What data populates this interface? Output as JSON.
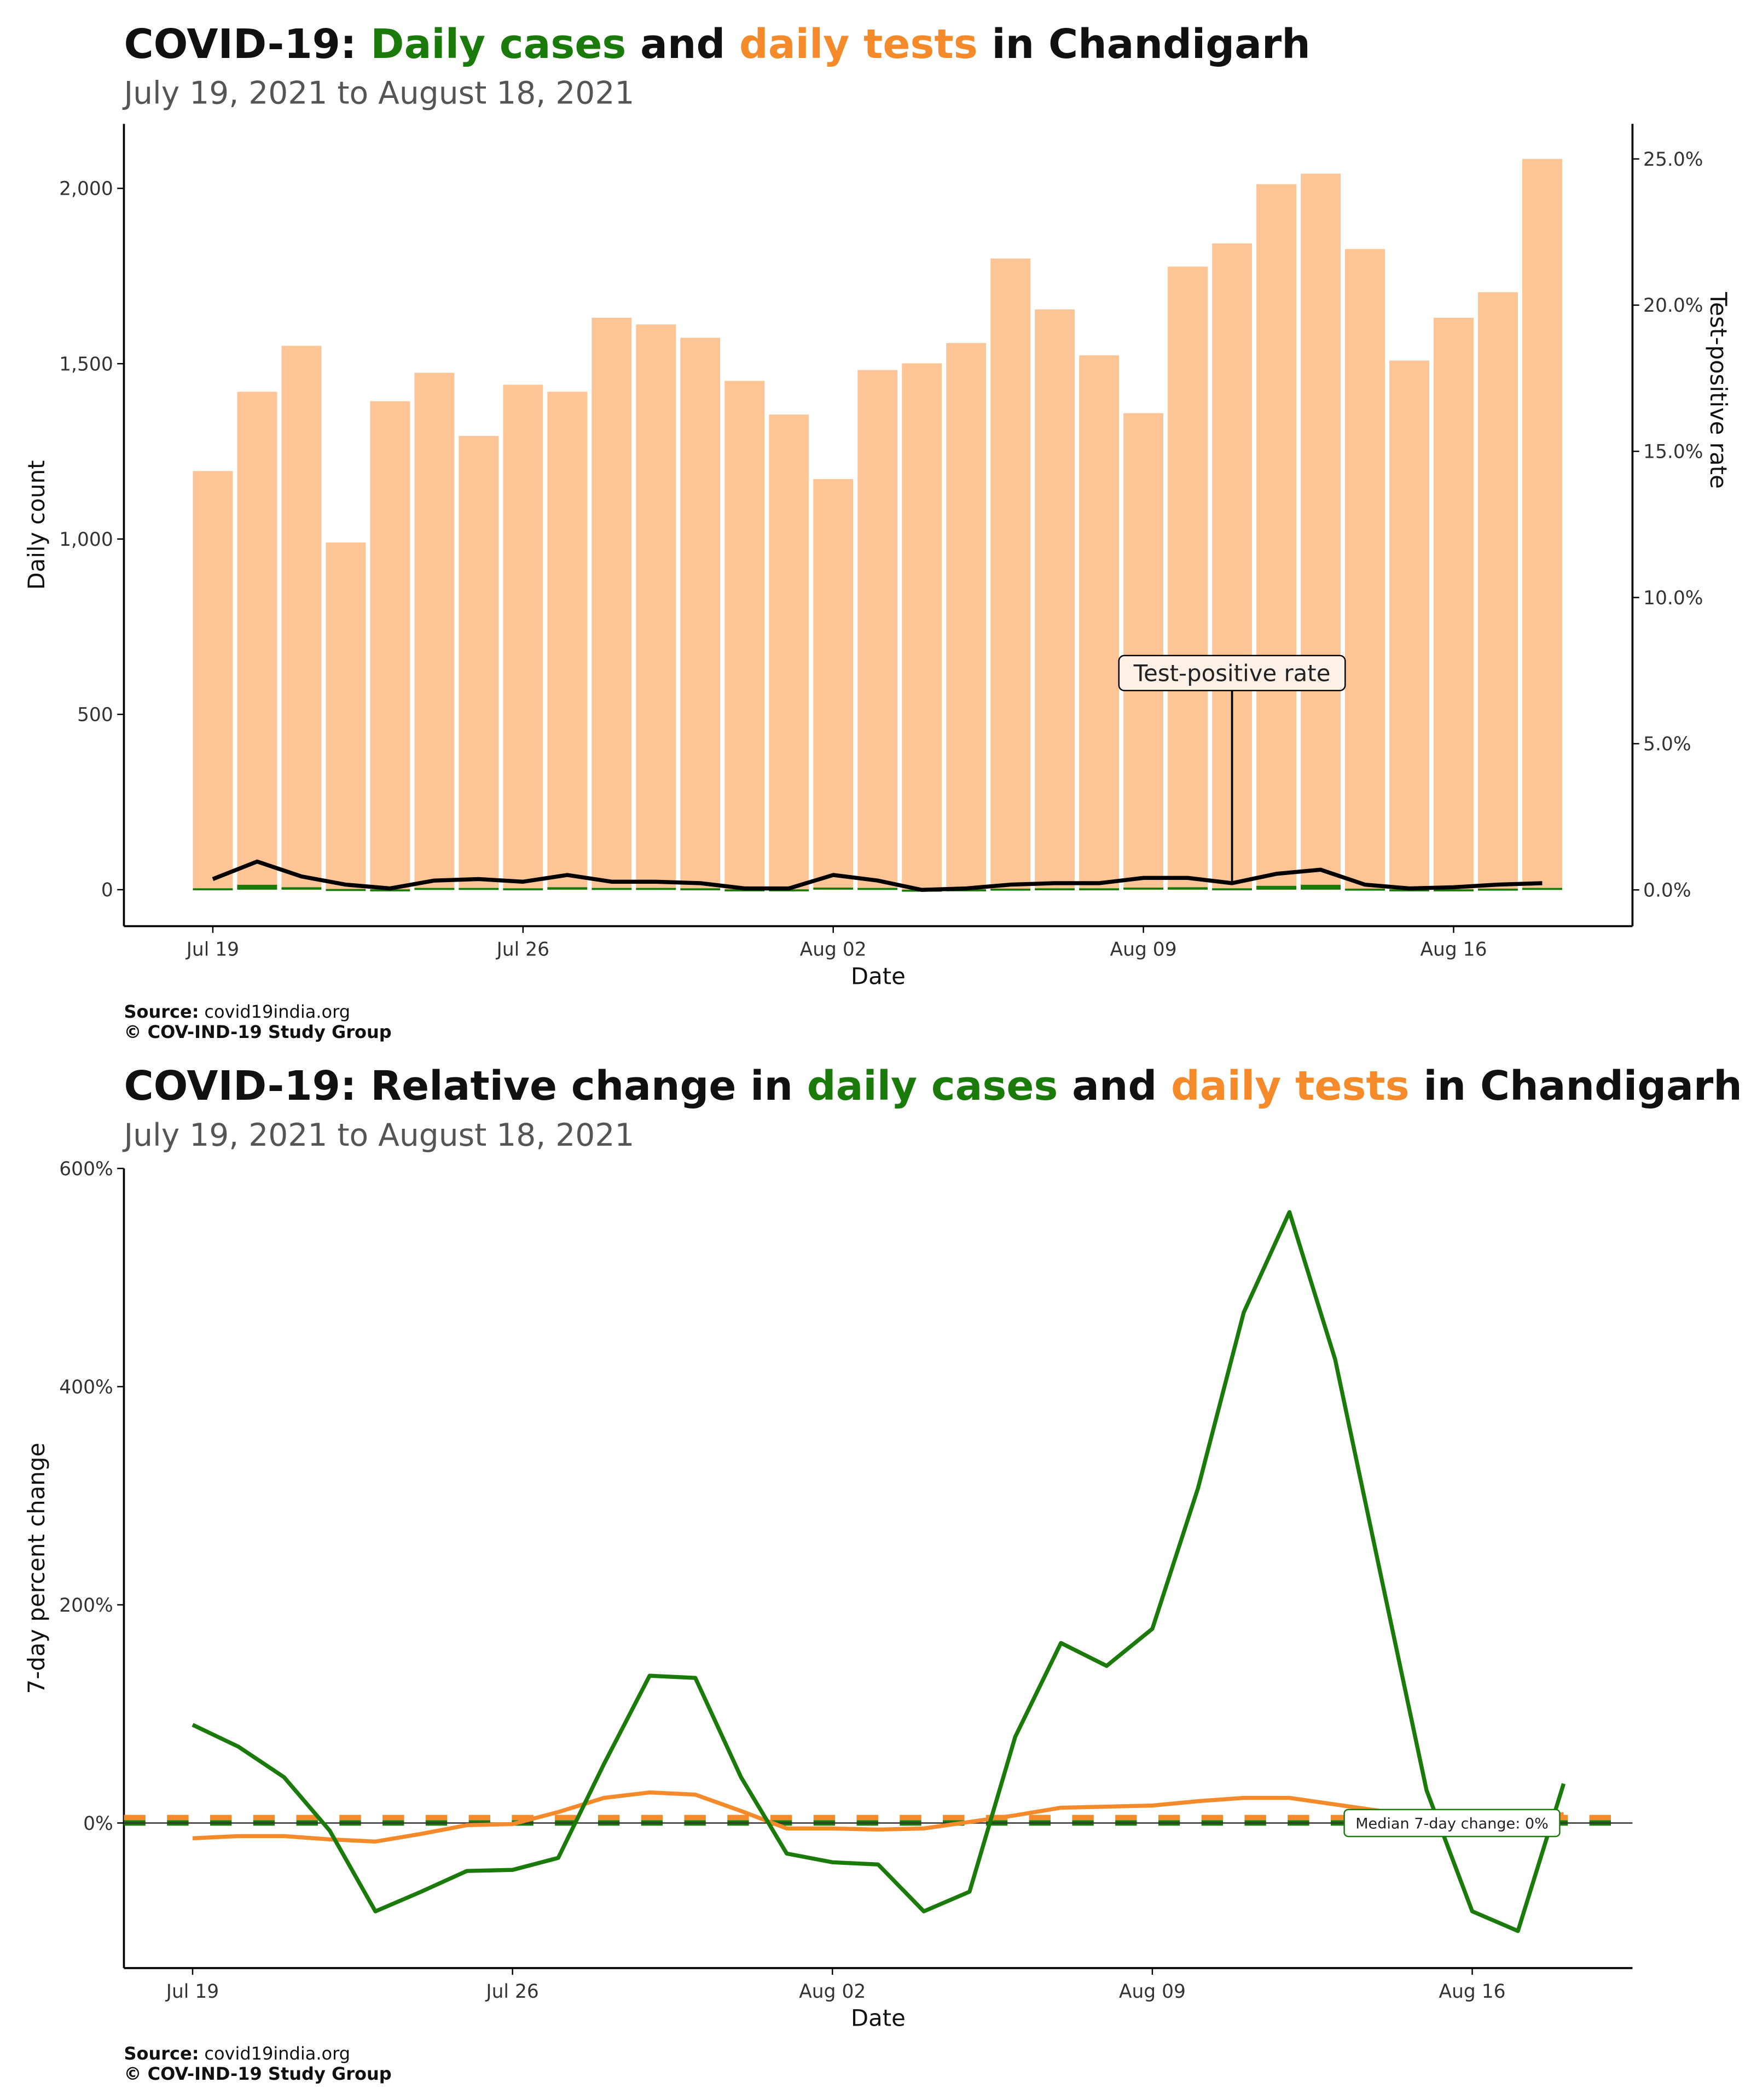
{
  "chart_data": [
    {
      "type": "bar",
      "title_parts": [
        "COVID-19: ",
        "Daily cases",
        " and ",
        "daily tests",
        " in Chandigarh"
      ],
      "subtitle": "July 19, 2021 to August 18, 2021",
      "xlabel": "Date",
      "ylabel": "Daily count",
      "y2label": "Test-positive rate",
      "annotation": "Test-positive rate",
      "source_label": "Source:",
      "source": "covid19india.org",
      "copyright": "© COV-IND-19 Study Group",
      "categories": [
        "Jul 19",
        null,
        null,
        null,
        null,
        null,
        null,
        "Jul 26",
        null,
        null,
        null,
        null,
        null,
        null,
        "Aug 02",
        null,
        null,
        null,
        null,
        null,
        null,
        "Aug 09",
        null,
        null,
        null,
        null,
        null,
        null,
        "Aug 16",
        null,
        null
      ],
      "series": [
        {
          "color": "#fdc496",
          "values": [
            1194,
            1420,
            1551,
            990,
            1393,
            1474,
            1294,
            1440,
            1420,
            1631,
            1612,
            1574,
            1451,
            1355,
            1171,
            1482,
            1501,
            1559,
            1800,
            1655,
            1524,
            1359,
            1777,
            1843,
            2012,
            2042,
            1827,
            1509,
            1631,
            1704,
            2084
          ]
        },
        {
          "color": "#1a7a0a",
          "values": [
            4,
            14,
            7,
            2,
            1,
            5,
            5,
            4,
            7,
            5,
            5,
            4,
            1,
            1,
            6,
            5,
            0,
            1,
            3,
            4,
            4,
            6,
            7,
            4,
            11,
            14,
            3,
            1,
            1,
            3,
            5
          ]
        },
        {
          "color": "#000000",
          "axis": "y2",
          "values": [
            0.37,
            0.97,
            0.46,
            0.18,
            0.05,
            0.32,
            0.37,
            0.28,
            0.51,
            0.28,
            0.28,
            0.23,
            0.05,
            0.05,
            0.51,
            0.32,
            0,
            0.05,
            0.18,
            0.23,
            0.23,
            0.41,
            0.41,
            0.23,
            0.55,
            0.69,
            0.18,
            0.05,
            0.09,
            0.18,
            0.23
          ]
        }
      ],
      "ylim": [
        -104,
        2184
      ],
      "yticks": [
        0,
        500,
        {
          "value": 1000,
          "label": "1,000"
        },
        {
          "value": 1500,
          "label": "1,500"
        },
        {
          "value": 2000,
          "label": "2,000"
        }
      ],
      "y2lim": [
        -1.24,
        26.2
      ],
      "y2ticks": [
        {
          "value": 0,
          "label": "0.0%"
        },
        {
          "value": 5,
          "label": "5.0%"
        },
        {
          "value": 10,
          "label": "10.0%"
        },
        {
          "value": 15,
          "label": "15.0%"
        },
        {
          "value": 20,
          "label": "20.0%"
        },
        {
          "value": 25,
          "label": "25.0%"
        }
      ]
    },
    {
      "type": "line",
      "title_parts": [
        "COVID-19: Relative change in ",
        "daily cases",
        " and ",
        "daily tests",
        " in Chandigarh"
      ],
      "subtitle": "July 19, 2021 to August 18, 2021",
      "xlabel": "Date",
      "ylabel": "7-day percent change",
      "source_label": "Source:",
      "source": "covid19india.org",
      "copyright": "© COV-IND-19 Study Group",
      "categories": [
        "Jul 19",
        null,
        null,
        null,
        null,
        null,
        null,
        "Jul 26",
        null,
        null,
        null,
        null,
        null,
        null,
        "Aug 02",
        null,
        null,
        null,
        null,
        null,
        null,
        "Aug 09",
        null,
        null,
        null,
        null,
        null,
        null,
        "Aug 16",
        null,
        null
      ],
      "series": [
        {
          "color": "#f58a2a",
          "values": [
            -14,
            -12,
            -12,
            -15,
            -17,
            -10,
            -2,
            -1,
            10,
            23,
            28,
            26,
            11,
            -5,
            -5,
            -6,
            -5,
            1,
            7,
            14,
            15,
            16,
            20,
            23,
            23,
            17,
            11,
            9,
            8,
            8,
            8
          ]
        },
        {
          "color": "#1a7a0a",
          "values": [
            90,
            70,
            42,
            -7,
            -81,
            -63,
            -44,
            -43,
            -32,
            54,
            135,
            133,
            42,
            -28,
            -36,
            -38,
            -81,
            -63,
            79,
            165,
            144,
            178,
            307,
            468,
            560,
            425,
            227,
            30,
            -81,
            -99,
            36
          ]
        }
      ],
      "median_lines": [
        {
          "value": 5,
          "color": "#f58a2a"
        },
        {
          "value": 0,
          "color": "#1a7a0a",
          "label": "Median 7-day change: 0%"
        }
      ],
      "ylim": [
        -133,
        600
      ],
      "yticks": [
        {
          "value": 0,
          "label": "0%"
        },
        {
          "value": 200,
          "label": "200%"
        },
        {
          "value": 400,
          "label": "400%"
        },
        {
          "value": 600,
          "label": "600%"
        }
      ]
    }
  ]
}
